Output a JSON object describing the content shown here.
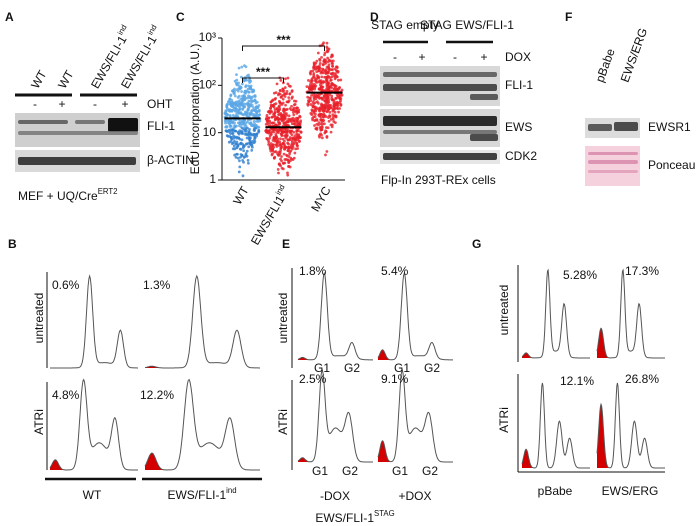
{
  "panel_labels": [
    "A",
    "B",
    "C",
    "D",
    "E",
    "F",
    "G"
  ],
  "panel_a": {
    "lanes": [
      {
        "text": "WT"
      },
      {
        "text": "WT"
      },
      {
        "text": "EWS/FLI-1",
        "sup": "ind"
      },
      {
        "text": "EWS/FLI-1",
        "sup": "ind"
      }
    ],
    "treatment": [
      "-",
      "+",
      "-",
      "+"
    ],
    "treatment_label": "OHT",
    "bands": [
      "FLI-1",
      "β-ACTIN"
    ],
    "caption": {
      "text": "MEF + UQ/Cre",
      "sup": "ERT2"
    }
  },
  "panel_c": {
    "type": "scatter",
    "y_label": "EdU incorporation (A.U.)",
    "yscale": "log",
    "ylim": [
      1,
      1000
    ],
    "yticks": [
      {
        "value": 1000,
        "label": "10³"
      },
      {
        "value": 100,
        "label": "10²"
      },
      10,
      1
    ],
    "categories": [
      {
        "text": "WT"
      },
      {
        "text": "EWS/FLI1",
        "sup": "ind"
      },
      {
        "text": "MYC"
      }
    ],
    "medians": [
      20,
      13,
      70
    ],
    "colors": [
      "#5aa6e6",
      "#e8202a",
      "#e8202a"
    ],
    "significance": [
      {
        "label": "***",
        "from": 0,
        "to": 2
      },
      {
        "label": "***",
        "from": 0,
        "to": 1
      }
    ]
  },
  "panel_d": {
    "groups": [
      "STAG empty",
      "STAG EWS/FLI-1"
    ],
    "treatment": [
      "-",
      "+",
      "-",
      "+"
    ],
    "treatment_label": "DOX",
    "bands": [
      "FLI-1",
      "EWS",
      "CDK2"
    ],
    "caption": "Flp-In 293T-REx cells"
  },
  "panel_f": {
    "lanes": [
      "pBabe",
      "EWS/ERG"
    ],
    "bands": [
      "EWSR1",
      "Ponceau"
    ]
  },
  "panel_b": {
    "rows": [
      "untreated",
      "ATRi"
    ],
    "percentages": [
      [
        "0.6%",
        "1.3%"
      ],
      [
        "4.8%",
        "12.2%"
      ]
    ],
    "columns": [
      {
        "text": "WT"
      },
      {
        "text": "EWS/FLI-1",
        "sup": "ind"
      }
    ]
  },
  "panel_e": {
    "rows": [
      "untreated",
      "ATRi"
    ],
    "percentages": [
      [
        "1.8%",
        "5.4%"
      ],
      [
        "2.5%",
        "9.1%"
      ]
    ],
    "phase_labels": [
      "G1",
      "G2"
    ],
    "columns": [
      "-DOX",
      "+DOX"
    ],
    "caption": {
      "text": "EWS/FLI-1",
      "sup": "STAG"
    }
  },
  "panel_g": {
    "rows": [
      "untreated",
      "ATRi"
    ],
    "percentages": [
      [
        "5.28%",
        "17.3%"
      ],
      [
        "12.1%",
        "26.8%"
      ]
    ],
    "columns": [
      "pBabe",
      "EWS/ERG"
    ]
  }
}
